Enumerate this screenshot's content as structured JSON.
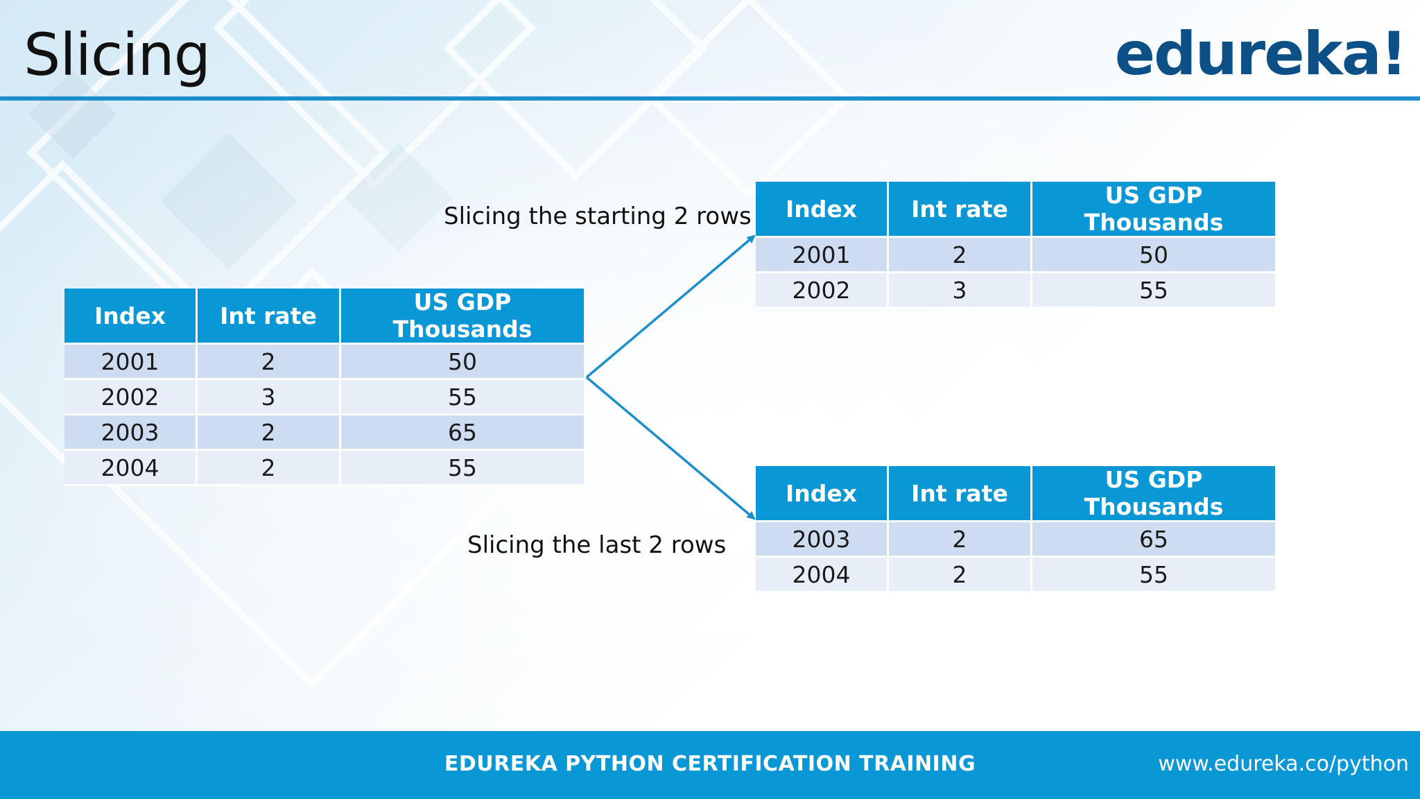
{
  "slide": {
    "title": "Slicing",
    "logo": "edureka!"
  },
  "columns": [
    "Index",
    "Int rate",
    "US GDP Thousands"
  ],
  "tables": {
    "main": {
      "rows": [
        [
          "2001",
          "2",
          "50"
        ],
        [
          "2002",
          "3",
          "55"
        ],
        [
          "2003",
          "2",
          "65"
        ],
        [
          "2004",
          "2",
          "55"
        ]
      ]
    },
    "top": {
      "rows": [
        [
          "2001",
          "2",
          "50"
        ],
        [
          "2002",
          "3",
          "55"
        ]
      ]
    },
    "bottom": {
      "rows": [
        [
          "2003",
          "2",
          "65"
        ],
        [
          "2004",
          "2",
          "55"
        ]
      ]
    }
  },
  "captions": {
    "top": "Slicing the starting 2 rows",
    "bottom": "Slicing the last 2 rows"
  },
  "footer": {
    "center": "EDUREKA PYTHON CERTIFICATION TRAINING",
    "url": "www.edureka.co/python"
  },
  "colors": {
    "accent": "#0a97d6",
    "logo": "#0d4f87",
    "row_odd": "#cddcf0",
    "row_even": "#e8eef7"
  }
}
